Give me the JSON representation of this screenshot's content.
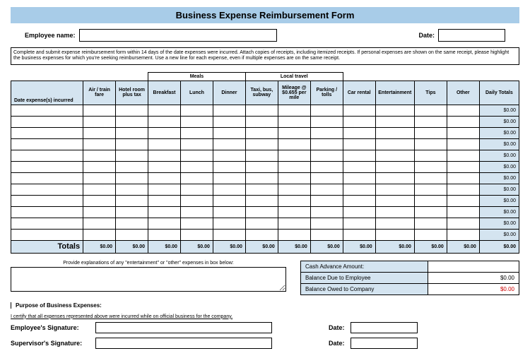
{
  "title": "Business Expense Reimbursement Form",
  "header": {
    "employee_name_label": "Employee name:",
    "date_label": "Date:",
    "employee_name_value": "",
    "date_value": ""
  },
  "instructions": "Complete and submit expense reimbursement form within 14 days of the date expenses were incurred. Attach copies of receipts, including itemized receipts. If personal expenses are shown on the same receipt, please highlight the business expenses for which you're seeking reimbursement. Use a new line for each expense, even if multiple expenses are on the same receipt.",
  "groups": {
    "meals": "Meals",
    "local_travel": "Local travel"
  },
  "columns": {
    "date": "Date expense(s) incurred",
    "air": "Air / train fare",
    "hotel": "Hotel room plus tax",
    "breakfast": "Breakfast",
    "lunch": "Lunch",
    "dinner": "Dinner",
    "taxi": "Taxi, bus, subway",
    "mileage": "Mileage @ $0.655 per mile",
    "parking": "Parking / tolls",
    "car": "Car rental",
    "entertainment": "Entertainment",
    "tips": "Tips",
    "other": "Other",
    "daily_totals": "Daily Totals"
  },
  "daily_total_values": [
    "$0.00",
    "$0.00",
    "$0.00",
    "$0.00",
    "$0.00",
    "$0.00",
    "$0.00",
    "$0.00",
    "$0.00",
    "$0.00",
    "$0.00",
    "$0.00"
  ],
  "totals_row": {
    "label": "Totals",
    "values": [
      "$0.00",
      "$0.00",
      "$0.00",
      "$0.00",
      "$0.00",
      "$0.00",
      "$0.00",
      "$0.00",
      "$0.00",
      "$0.00",
      "$0.00",
      "$0.00",
      "$0.00"
    ]
  },
  "explain_label": "Provide explanations of any \"entertainment\" or \"other\" expenses in box below:",
  "summary": {
    "cash_advance_label": "Cash Advance Amount:",
    "cash_advance_value": "",
    "balance_due_label": "Balance Due to Employee",
    "balance_due_value": "$0.00",
    "balance_owed_label": "Balance Owed to Company",
    "balance_owed_value": "$0.00"
  },
  "purpose_label": "Purpose of Business Expenses:",
  "cert_text": "I certify that all expenses represented above were incurred while on official business for the company.",
  "signatures": {
    "employee_label": "Employee's Signature:",
    "supervisor_label": "Supervisor's Signature:",
    "date_label": "Date:"
  },
  "colors": {
    "header_bg": "#a8cce8",
    "cell_bg": "#d4e4f0",
    "negative": "#cc0000"
  }
}
